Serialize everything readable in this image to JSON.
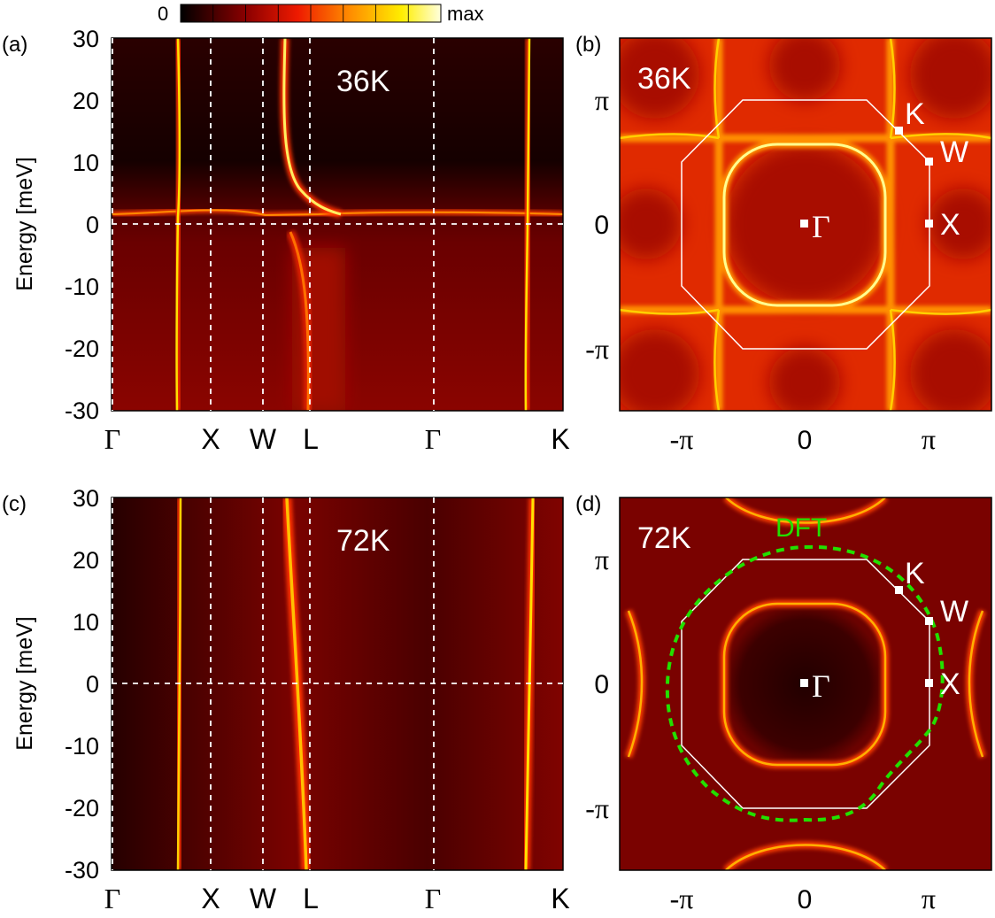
{
  "colorbar": {
    "min_label": "0",
    "max_label": "max"
  },
  "panels": {
    "a": {
      "label": "(a)",
      "temperature": "36K"
    },
    "b": {
      "label": "(b)",
      "temperature": "36K"
    },
    "c": {
      "label": "(c)",
      "temperature": "72K"
    },
    "d": {
      "label": "(d)",
      "temperature": "72K",
      "dft_label": "DFT"
    }
  },
  "spectral": {
    "ylabel": "Energy [meV]",
    "y_ticks": [
      "30",
      "20",
      "10",
      "0",
      "-10",
      "-20",
      "-30"
    ],
    "x_labels": [
      "Γ",
      "X",
      "W",
      "L",
      "Γ",
      "K"
    ]
  },
  "fermi": {
    "x_ticks": [
      "-π",
      "0",
      "π"
    ],
    "y_ticks": [
      "π",
      "0",
      "-π"
    ],
    "points": [
      "K",
      "W",
      "X",
      "Γ"
    ]
  },
  "chart_data": [
    {
      "type": "heatmap",
      "panel": "a",
      "title": "",
      "ylabel": "Energy [meV]",
      "ylim": [
        -30,
        30
      ],
      "x_path": [
        "Γ",
        "X",
        "W",
        "L",
        "Γ",
        "K"
      ],
      "annotation": "36K",
      "colorbar": [
        "0",
        "max"
      ]
    },
    {
      "type": "heatmap",
      "panel": "b",
      "xlim": [
        "-π",
        "π"
      ],
      "ylim": [
        "-π",
        "π"
      ],
      "annotation": "36K",
      "points": [
        "K",
        "W",
        "X",
        "Γ"
      ]
    },
    {
      "type": "heatmap",
      "panel": "c",
      "ylabel": "Energy [meV]",
      "ylim": [
        -30,
        30
      ],
      "x_path": [
        "Γ",
        "X",
        "W",
        "L",
        "Γ",
        "K"
      ],
      "annotation": "72K"
    },
    {
      "type": "heatmap",
      "panel": "d",
      "xlim": [
        "-π",
        "π"
      ],
      "ylim": [
        "-π",
        "π"
      ],
      "annotation": "72K",
      "overlay": "DFT",
      "points": [
        "K",
        "W",
        "X",
        "Γ"
      ]
    }
  ]
}
